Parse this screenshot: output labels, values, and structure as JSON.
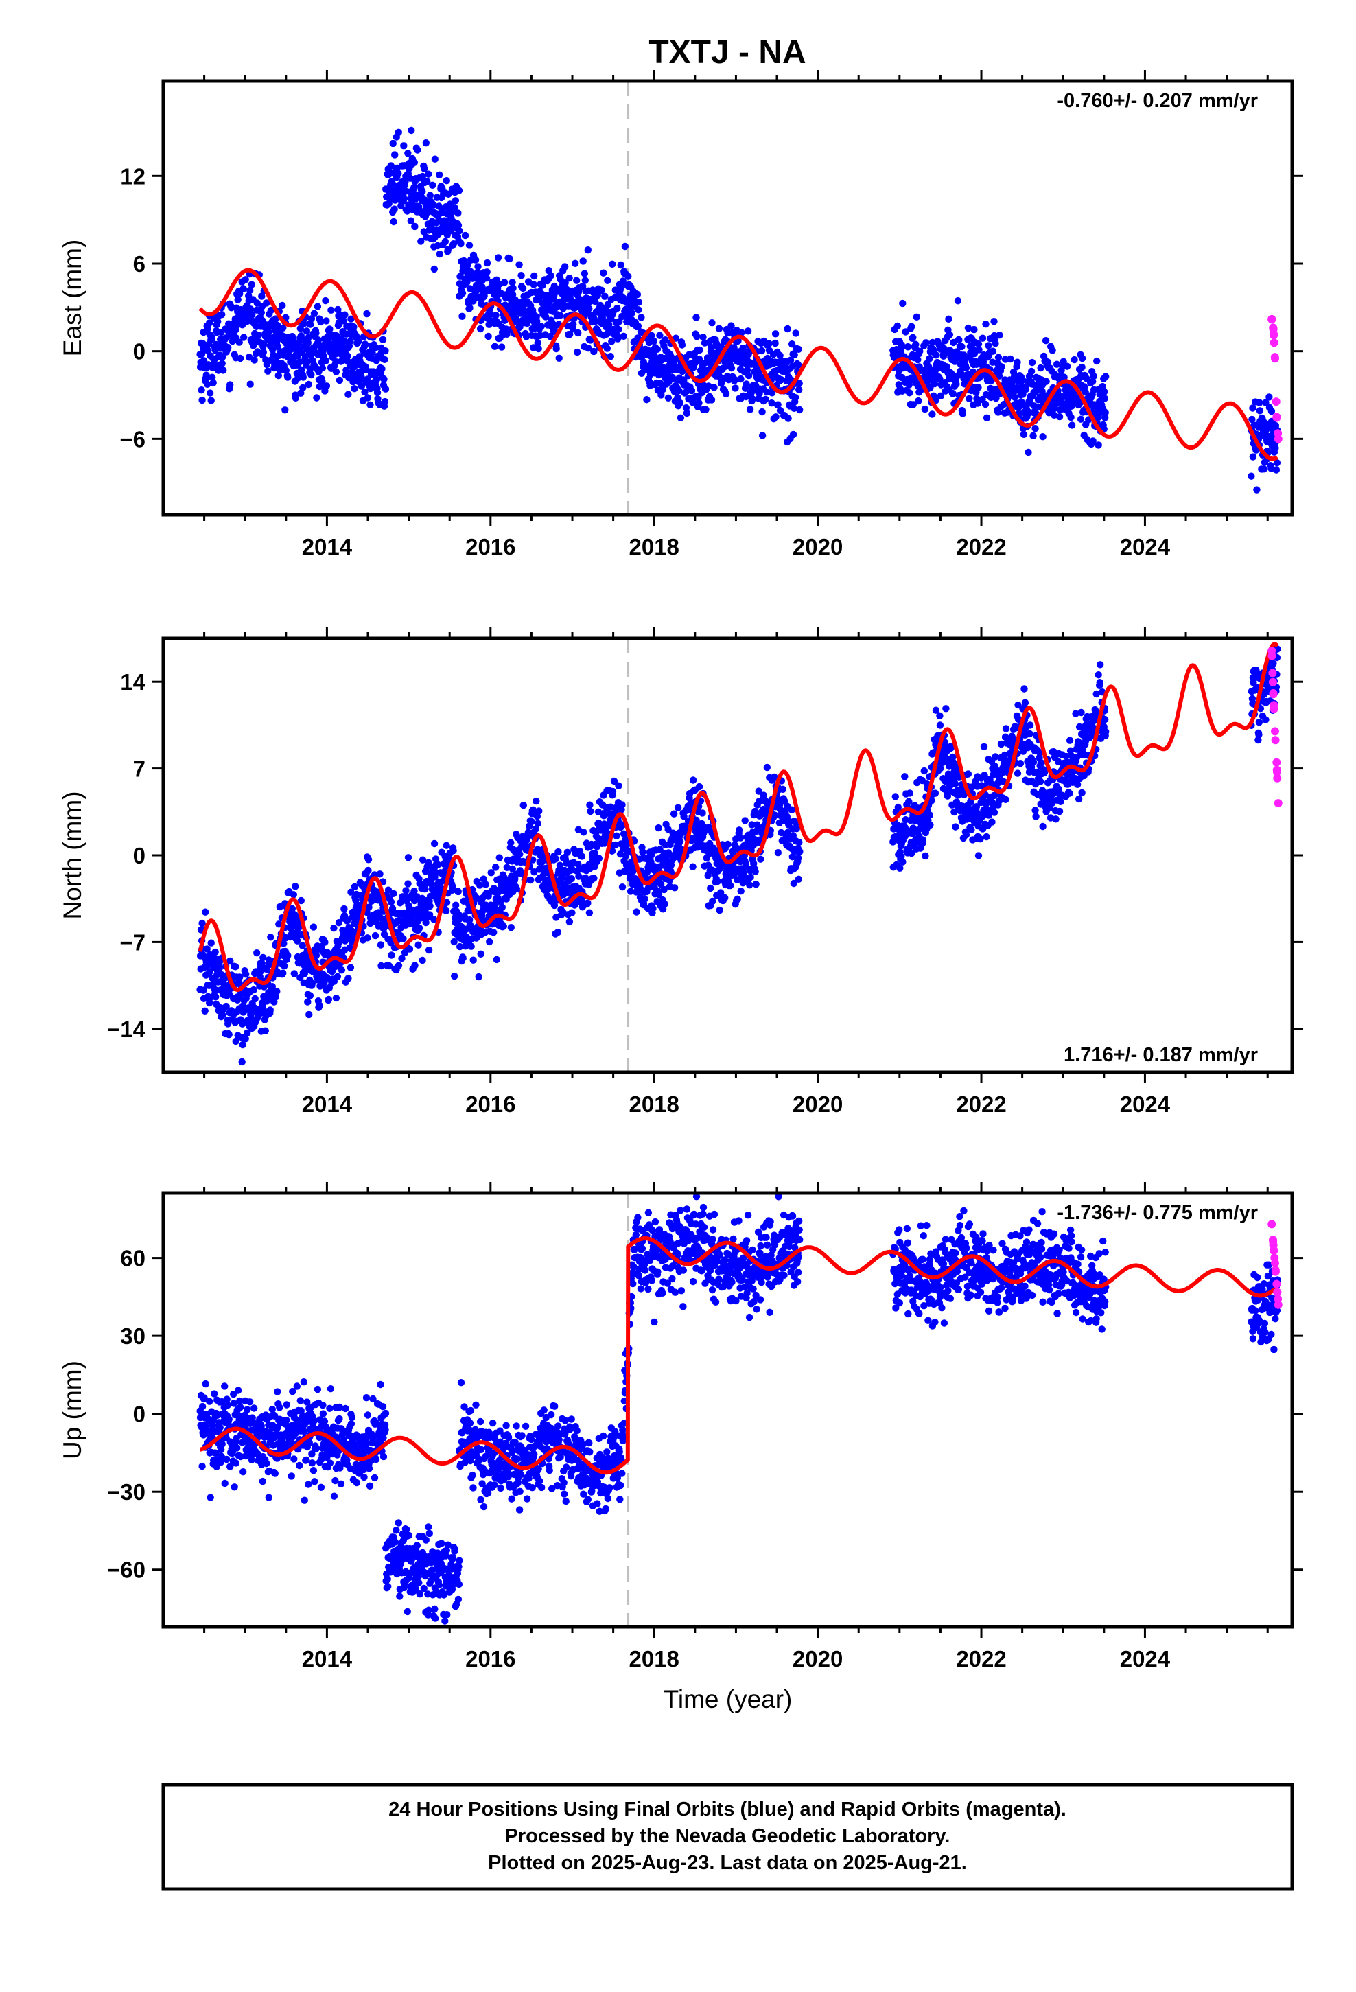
{
  "title": "TXTJ - NA",
  "footer": {
    "lines": [
      "24 Hour Positions Using Final Orbits (blue) and Rapid Orbits (magenta).",
      "Processed by the Nevada Geodetic Laboratory.",
      "Plotted on 2025-Aug-23. Last data on 2025-Aug-21."
    ]
  },
  "colors": {
    "final": "#0000ff",
    "rapid": "#ff1fff",
    "model": "#ff0000",
    "event_line": "#c0c0c0"
  },
  "chart_data": [
    {
      "type": "scatter",
      "ylabel": "East (mm)",
      "xlabel": "",
      "xlim": [
        2012.0,
        2025.8
      ],
      "ylim": [
        -11.2,
        18.5
      ],
      "xticks": [
        2014,
        2016,
        2018,
        2020,
        2022,
        2024
      ],
      "yticks": [
        -6,
        0,
        6,
        12
      ],
      "rate_label": "-0.760+/- 0.207 mm/yr",
      "rate_position": "top-right",
      "event_line_x": 2017.68,
      "data_segments": [
        [
          2012.45,
          2014.72
        ],
        [
          2014.72,
          2015.62
        ],
        [
          2015.62,
          2019.78
        ],
        [
          2020.92,
          2023.52
        ],
        [
          2025.3,
          2025.62
        ]
      ],
      "series": [
        {
          "name": "Final Orbits (blue)",
          "x": [
            2012.5,
            2012.8,
            2013.0,
            2013.3,
            2013.6,
            2013.9,
            2014.2,
            2014.5,
            2014.75,
            2014.9,
            2015.1,
            2015.3,
            2015.55,
            2015.8,
            2016.0,
            2016.3,
            2016.6,
            2016.9,
            2017.2,
            2017.5,
            2017.68,
            2017.9,
            2018.2,
            2018.5,
            2018.8,
            2019.0,
            2019.3,
            2019.6,
            2021.0,
            2021.3,
            2021.6,
            2021.9,
            2022.2,
            2022.5,
            2022.8,
            2023.1,
            2023.4,
            2025.35,
            2025.55
          ],
          "y": [
            -0.5,
            1.2,
            2.8,
            1.0,
            -0.5,
            0.3,
            0.5,
            -1.5,
            11.5,
            12.0,
            11.2,
            9.5,
            9.0,
            4.5,
            3.5,
            2.5,
            3.0,
            3.5,
            3.0,
            2.2,
            4.0,
            -0.5,
            -1.5,
            -2.0,
            -0.5,
            -0.8,
            -1.5,
            -2.0,
            -0.5,
            -1.5,
            -1.0,
            -1.2,
            -1.5,
            -3.5,
            -2.5,
            -2.5,
            -3.5,
            -6.5,
            -6.0
          ]
        },
        {
          "name": "Rapid Orbits (magenta)",
          "x": [
            2025.55,
            2025.57,
            2025.59,
            2025.61,
            2025.63
          ],
          "y": [
            2.2,
            1.5,
            -0.5,
            -4.5,
            -6.0
          ]
        }
      ],
      "model": {
        "name": "model",
        "offset": 0,
        "intercept": 4.3,
        "rate": -0.76,
        "annual_amp": 1.7,
        "annual_phase": 2013.05,
        "semi_amp": 0.0,
        "step_year": null,
        "step": 0
      }
    },
    {
      "type": "scatter",
      "ylabel": "North (mm)",
      "xlabel": "",
      "xlim": [
        2012.0,
        2025.8
      ],
      "ylim": [
        -17.5,
        17.5
      ],
      "xticks": [
        2014,
        2016,
        2018,
        2020,
        2022,
        2024
      ],
      "yticks": [
        -14,
        -7,
        0,
        7,
        14
      ],
      "rate_label": "1.716+/- 0.187 mm/yr",
      "rate_position": "bottom-right",
      "event_line_x": 2017.68,
      "data_segments": [
        [
          2012.45,
          2015.55
        ],
        [
          2015.55,
          2019.78
        ],
        [
          2020.92,
          2023.52
        ],
        [
          2025.3,
          2025.62
        ]
      ],
      "series": [
        {
          "name": "Final Orbits (blue)",
          "x": [
            2012.5,
            2012.8,
            2013.0,
            2013.3,
            2013.55,
            2013.8,
            2014.1,
            2014.5,
            2014.8,
            2015.1,
            2015.5,
            2015.8,
            2016.1,
            2016.5,
            2016.8,
            2017.1,
            2017.5,
            2017.8,
            2018.1,
            2018.5,
            2018.8,
            2019.1,
            2019.5,
            2019.7,
            2021.0,
            2021.3,
            2021.5,
            2021.8,
            2022.1,
            2022.5,
            2022.8,
            2023.1,
            2023.45,
            2025.4,
            2025.55
          ],
          "y": [
            -9.0,
            -11.5,
            -12.5,
            -10.5,
            -5.0,
            -9.5,
            -9.0,
            -2.5,
            -6.0,
            -5.0,
            -1.0,
            -5.5,
            -4.0,
            1.5,
            -3.0,
            -2.0,
            3.5,
            -2.5,
            -1.5,
            3.5,
            -2.0,
            -0.5,
            5.0,
            0.0,
            2.0,
            3.0,
            9.0,
            3.5,
            4.5,
            10.0,
            5.0,
            6.5,
            11.5,
            12.5,
            14.5
          ]
        },
        {
          "name": "Rapid Orbits (magenta)",
          "x": [
            2025.55,
            2025.57,
            2025.59,
            2025.61,
            2025.63
          ],
          "y": [
            16.5,
            13.0,
            10.0,
            7.5,
            4.2
          ]
        }
      ],
      "model": {
        "name": "model",
        "offset": 0,
        "intercept": -9.6,
        "rate": 1.716,
        "annual_amp": 2.8,
        "annual_phase": 2012.58,
        "semi_amp": 1.3,
        "step_year": null,
        "step": 0
      }
    },
    {
      "type": "scatter",
      "ylabel": "Up (mm)",
      "xlabel": "Time (year)",
      "xlim": [
        2012.0,
        2025.8
      ],
      "ylim": [
        -82,
        85
      ],
      "xticks": [
        2014,
        2016,
        2018,
        2020,
        2022,
        2024
      ],
      "yticks": [
        -60,
        -30,
        0,
        30,
        60
      ],
      "rate_label": "-1.736+/- 0.775 mm/yr",
      "rate_position": "top-right",
      "event_line_x": 2017.68,
      "data_segments": [
        [
          2012.45,
          2014.72
        ],
        [
          2014.72,
          2015.62
        ],
        [
          2015.62,
          2019.78
        ],
        [
          2020.92,
          2023.52
        ],
        [
          2025.3,
          2025.62
        ]
      ],
      "series": [
        {
          "name": "Final Orbits (blue)",
          "x": [
            2012.5,
            2012.9,
            2013.3,
            2013.6,
            2014.0,
            2014.4,
            2014.7,
            2014.85,
            2015.1,
            2015.4,
            2015.7,
            2016.0,
            2016.4,
            2016.8,
            2017.2,
            2017.6,
            2017.75,
            2018.0,
            2018.5,
            2018.8,
            2019.2,
            2019.6,
            2021.0,
            2021.4,
            2021.8,
            2022.2,
            2022.6,
            2023.0,
            2023.4,
            2025.35,
            2025.55
          ],
          "y": [
            -5.0,
            -8.0,
            -12.0,
            -6.0,
            -12.0,
            -14.0,
            -8.0,
            -55.0,
            -60.0,
            -62.0,
            -8.0,
            -18.0,
            -20.0,
            -12.0,
            -22.0,
            -20.0,
            67.0,
            60.0,
            66.0,
            58.0,
            55.0,
            65.0,
            55.0,
            50.0,
            60.0,
            52.0,
            58.0,
            55.0,
            48.0,
            42.0,
            45.0
          ]
        },
        {
          "name": "Rapid Orbits (magenta)",
          "x": [
            2025.55,
            2025.57,
            2025.59,
            2025.61,
            2025.63
          ],
          "y": [
            73.0,
            65.0,
            58.0,
            50.0,
            42.0
          ]
        }
      ],
      "model": {
        "name": "model",
        "offset": 0,
        "intercept": -9.5,
        "rate": -1.736,
        "annual_amp": 4.5,
        "annual_phase": 2012.9,
        "semi_amp": 0.0,
        "step_year": 2017.68,
        "step": 82.0
      }
    }
  ]
}
